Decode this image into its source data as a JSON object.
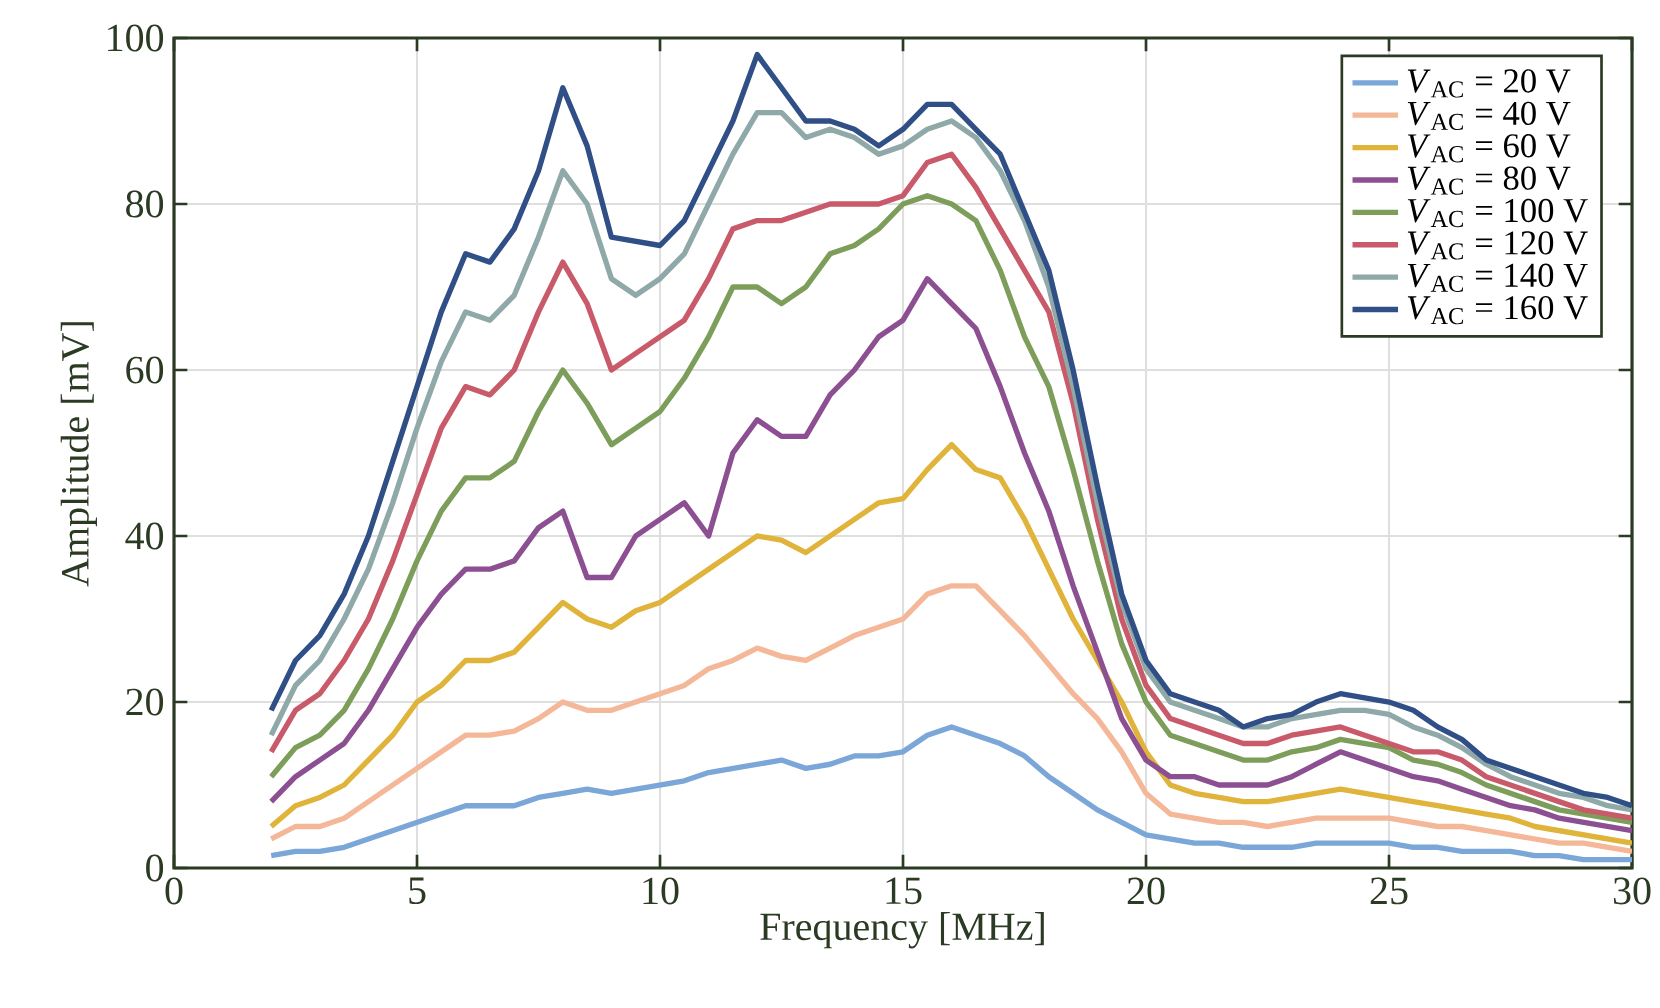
{
  "chart_data": {
    "type": "line",
    "xlabel": "Frequency [MHz]",
    "ylabel": "Amplitude [mV]",
    "x": [
      2,
      2.5,
      3,
      3.5,
      4,
      4.5,
      5,
      5.5,
      6,
      6.5,
      7,
      7.5,
      8,
      8.5,
      9,
      9.5,
      10,
      10.5,
      11,
      11.5,
      12,
      12.5,
      13,
      13.5,
      14,
      14.5,
      15,
      15.5,
      16,
      16.5,
      17,
      17.5,
      18,
      18.5,
      19,
      19.5,
      20,
      20.5,
      21,
      21.5,
      22,
      22.5,
      23,
      23.5,
      24,
      24.5,
      25,
      25.5,
      26,
      26.5,
      27,
      27.5,
      28,
      28.5,
      29,
      29.5,
      30
    ],
    "xlim": [
      0,
      30
    ],
    "xticks": [
      0,
      5,
      10,
      15,
      20,
      25,
      30
    ],
    "ylim": [
      0,
      100
    ],
    "yticks": [
      0,
      20,
      40,
      60,
      80,
      100
    ],
    "grid": true,
    "legend": "top right",
    "series": [
      {
        "name": "*V*$_{AC}$ = 20 V",
        "color": "#7aa6d8",
        "values": [
          1.5,
          2,
          2,
          2.5,
          3.5,
          4.5,
          5.5,
          6.5,
          7.5,
          7.5,
          7.5,
          8.5,
          9,
          9.5,
          9,
          9.5,
          10,
          10.5,
          11.5,
          12,
          12.5,
          13,
          12,
          12.5,
          13.5,
          13.5,
          14,
          16,
          17,
          16,
          15,
          13.5,
          11,
          9,
          7,
          5.5,
          4,
          3.5,
          3,
          3,
          2.5,
          2.5,
          2.5,
          3,
          3,
          3,
          3,
          2.5,
          2.5,
          2,
          2,
          2,
          1.5,
          1.5,
          1,
          1,
          1
        ]
      },
      {
        "name": "*V*$_{AC}$ = 40 V",
        "color": "#f4b898",
        "values": [
          3.5,
          5,
          5,
          6,
          8,
          10,
          12,
          14,
          16,
          16,
          16.5,
          18,
          20,
          19,
          19,
          20,
          21,
          22,
          24,
          25,
          26.5,
          25.5,
          25,
          26.5,
          28,
          29,
          30,
          33,
          34,
          34,
          31,
          28,
          24.5,
          21,
          18,
          14,
          9,
          6.5,
          6,
          5.5,
          5.5,
          5,
          5.5,
          6,
          6,
          6,
          6,
          5.5,
          5,
          5,
          4.5,
          4,
          3.5,
          3,
          3,
          2.5,
          2
        ]
      },
      {
        "name": "*V*$_{AC}$ = 60 V",
        "color": "#e0b33a",
        "values": [
          5,
          7.5,
          8.5,
          10,
          13,
          16,
          20,
          22,
          25,
          25,
          26,
          29,
          32,
          30,
          29,
          31,
          32,
          34,
          36,
          38,
          40,
          39.5,
          38,
          40,
          42,
          44,
          44.5,
          48,
          51,
          48,
          47,
          42,
          36,
          30,
          25,
          20,
          14,
          10,
          9,
          8.5,
          8,
          8,
          8.5,
          9,
          9.5,
          9,
          8.5,
          8,
          7.5,
          7,
          6.5,
          6,
          5,
          4.5,
          4,
          3.5,
          3
        ]
      },
      {
        "name": "*V*$_{AC}$ = 80 V",
        "color": "#8b4f92",
        "values": [
          8,
          11,
          13,
          15,
          19,
          24,
          29,
          33,
          36,
          36,
          37,
          41,
          43,
          35,
          35,
          40,
          42,
          44,
          40,
          50,
          54,
          52,
          52,
          57,
          60,
          64,
          66,
          71,
          68,
          65,
          58,
          50,
          43,
          34,
          26,
          18,
          13,
          11,
          11,
          10,
          10,
          10,
          11,
          12.5,
          14,
          13,
          12,
          11,
          10.5,
          9.5,
          8.5,
          7.5,
          7,
          6,
          5.5,
          5,
          4.5
        ]
      },
      {
        "name": "*V*$_{AC}$ = 100 V",
        "color": "#7d9e5a",
        "values": [
          11,
          14.5,
          16,
          19,
          24,
          30,
          37,
          43,
          47,
          47,
          49,
          55,
          60,
          56,
          51,
          53,
          55,
          59,
          64,
          70,
          70,
          68,
          70,
          74,
          75,
          77,
          80,
          81,
          80,
          78,
          72,
          64,
          58,
          48,
          37,
          27,
          20,
          16,
          15,
          14,
          13,
          13,
          14,
          14.5,
          15.5,
          15,
          14.5,
          13,
          12.5,
          11.5,
          10,
          9,
          8,
          7,
          6.5,
          6,
          5.5
        ]
      },
      {
        "name": "*V*$_{AC}$ = 120 V",
        "color": "#c85a6a",
        "values": [
          14,
          19,
          21,
          25,
          30,
          37,
          45,
          53,
          58,
          57,
          60,
          67,
          73,
          68,
          60,
          62,
          64,
          66,
          71,
          77,
          78,
          78,
          79,
          80,
          80,
          80,
          81,
          85,
          86,
          82,
          77,
          72,
          67,
          56,
          42,
          30,
          22,
          18,
          17,
          16,
          15,
          15,
          16,
          16.5,
          17,
          16,
          15,
          14,
          14,
          13,
          11,
          10,
          9,
          8,
          7,
          6.5,
          6
        ]
      },
      {
        "name": "*V*$_{AC}$ = 140 V",
        "color": "#8fa8a8",
        "values": [
          16,
          22,
          25,
          30,
          36,
          44,
          53,
          61,
          67,
          66,
          69,
          76,
          84,
          80,
          71,
          69,
          71,
          74,
          80,
          86,
          91,
          91,
          88,
          89,
          88,
          86,
          87,
          89,
          90,
          88,
          84,
          78,
          70,
          58,
          44,
          32,
          24,
          20,
          19,
          18,
          17,
          17,
          18,
          18.5,
          19,
          19,
          18.5,
          17,
          16,
          14.5,
          12.5,
          11,
          10,
          9,
          8.5,
          7.5,
          7
        ]
      },
      {
        "name": "*V*$_{AC}$ = 160 V",
        "color": "#2f4f86",
        "values": [
          19,
          25,
          28,
          33,
          40,
          49,
          58,
          67,
          74,
          73,
          77,
          84,
          94,
          87,
          76,
          75.5,
          75,
          78,
          84,
          90,
          98,
          94,
          90,
          90,
          89,
          87,
          89,
          92,
          92,
          89,
          86,
          79,
          72,
          60,
          46,
          33,
          25,
          21,
          20,
          19,
          17,
          18,
          18.5,
          20,
          21,
          20.5,
          20,
          19,
          17,
          15.5,
          13,
          12,
          11,
          10,
          9,
          8.5,
          7.5
        ]
      }
    ]
  }
}
